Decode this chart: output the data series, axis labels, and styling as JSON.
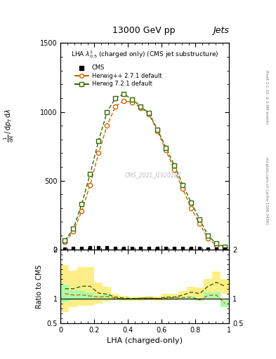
{
  "title_top": "13000 GeV pp",
  "title_right": "Jets",
  "plot_title": "LHA $\\lambda^{1}_{0.5}$ (charged only) (CMS jet substructure)",
  "xlabel": "LHA (charged-only)",
  "ylabel_main": "$\\frac{1}{\\mathrm{d}N} / \\mathrm{d}p_\\mathrm{T}\\,\\mathrm{d}\\lambda$",
  "ylabel_ratio": "Ratio to CMS",
  "watermark": "CMS_2021_I1920187",
  "rivet_label": "Rivet 3.1.10; ≥ 2.6M events",
  "mcplots_label": "mcplots.cern.ch [arXiv:1306.3436]",
  "cms_x": [
    0.025,
    0.075,
    0.125,
    0.175,
    0.225,
    0.275,
    0.325,
    0.375,
    0.425,
    0.475,
    0.525,
    0.575,
    0.625,
    0.675,
    0.725,
    0.775,
    0.825,
    0.875,
    0.925,
    0.975
  ],
  "cms_y": [
    5,
    7,
    10,
    12,
    15,
    12,
    10,
    8,
    8,
    8,
    8,
    8,
    8,
    8,
    8,
    8,
    8,
    5,
    3,
    2
  ],
  "herwig_pp_x": [
    0.025,
    0.075,
    0.125,
    0.175,
    0.225,
    0.275,
    0.325,
    0.375,
    0.425,
    0.475,
    0.525,
    0.575,
    0.625,
    0.675,
    0.725,
    0.775,
    0.825,
    0.875,
    0.925,
    0.975
  ],
  "herwig_pp_y": [
    55,
    130,
    280,
    470,
    700,
    900,
    1040,
    1080,
    1070,
    1030,
    980,
    860,
    720,
    580,
    440,
    300,
    185,
    80,
    30,
    15
  ],
  "herwig7_x": [
    0.025,
    0.075,
    0.125,
    0.175,
    0.225,
    0.275,
    0.325,
    0.375,
    0.425,
    0.475,
    0.525,
    0.575,
    0.625,
    0.675,
    0.725,
    0.775,
    0.825,
    0.875,
    0.925,
    0.975
  ],
  "herwig7_y": [
    65,
    150,
    330,
    550,
    790,
    1000,
    1100,
    1130,
    1090,
    1040,
    990,
    870,
    740,
    610,
    470,
    340,
    220,
    100,
    42,
    20
  ],
  "ratio_herwig_pp": [
    1.1,
    1.07,
    1.075,
    1.05,
    1.03,
    1.04,
    1.01,
    0.99,
    0.99,
    1.01,
    1.01,
    1.0,
    1.01,
    1.02,
    1.02,
    1.03,
    0.975,
    1.06,
    1.07,
    0.9
  ],
  "ratio_herwig7": [
    1.2,
    1.2,
    1.25,
    1.25,
    1.11,
    1.09,
    1.03,
    1.01,
    1.0,
    1.0,
    1.01,
    1.0,
    1.03,
    1.03,
    1.07,
    1.13,
    1.1,
    1.25,
    1.33,
    1.25
  ],
  "ratio_herwig_pp_band_lo": [
    0.92,
    0.97,
    0.98,
    0.98,
    0.99,
    1.0,
    0.99,
    0.975,
    0.975,
    0.99,
    0.99,
    0.985,
    0.99,
    1.0,
    1.0,
    1.0,
    0.95,
    1.0,
    1.0,
    0.83
  ],
  "ratio_herwig_pp_band_hi": [
    1.28,
    1.17,
    1.17,
    1.12,
    1.07,
    1.08,
    1.03,
    1.005,
    1.005,
    1.03,
    1.03,
    1.015,
    1.03,
    1.04,
    1.04,
    1.06,
    1.005,
    1.12,
    1.14,
    0.97
  ],
  "ratio_herwig7_band_lo": [
    0.72,
    0.83,
    0.86,
    0.86,
    0.9,
    0.94,
    0.97,
    0.96,
    0.96,
    0.96,
    0.97,
    0.96,
    0.97,
    0.97,
    0.99,
    1.02,
    0.98,
    1.1,
    1.1,
    1.1
  ],
  "ratio_herwig7_band_hi": [
    1.68,
    1.57,
    1.64,
    1.64,
    1.32,
    1.24,
    1.09,
    1.06,
    1.04,
    1.04,
    1.05,
    1.04,
    1.09,
    1.09,
    1.15,
    1.24,
    1.22,
    1.4,
    1.56,
    1.4
  ],
  "bin_width": 0.05,
  "ylim_main": [
    0,
    1500
  ],
  "ylim_ratio": [
    0.5,
    2.0
  ],
  "xlim": [
    0.0,
    1.0
  ],
  "herwig_pp_color": "#cc6600",
  "herwig7_color": "#336600",
  "cms_color": "#000000",
  "herwig_pp_band_color": "#aaffaa",
  "herwig7_band_color": "#ffee88",
  "bg_color": "#ffffff"
}
